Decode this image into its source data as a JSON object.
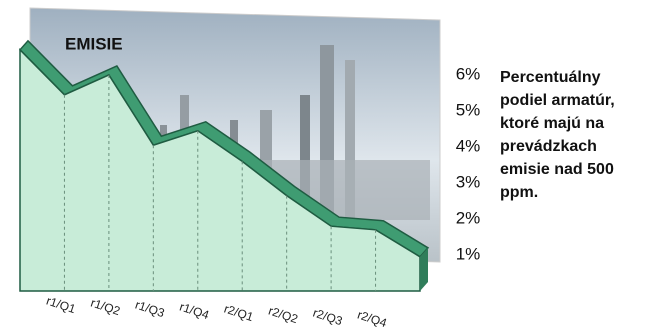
{
  "chart_data": {
    "type": "area",
    "title": "EMISIE",
    "annotation": "Percentuálny podiel armatúr, ktoré majú na prevádzkach emisie nad 500 ppm.",
    "categories": [
      null,
      "r1/Q1",
      "r1/Q2",
      "r1/Q3",
      "r1/Q4",
      "r2/Q1",
      "r2/Q2",
      "r2/Q3",
      "r2/Q4",
      null
    ],
    "values": [
      6.7,
      5.45,
      6.0,
      4.05,
      4.45,
      3.6,
      2.65,
      1.8,
      1.7,
      0.95
    ],
    "color": "#c8ecd8",
    "edge_color": "#3f9c72",
    "ylim": [
      0,
      7
    ],
    "yticks": [
      {
        "value": 1,
        "label": "1%"
      },
      {
        "value": 2,
        "label": "2%"
      },
      {
        "value": 3,
        "label": "3%"
      },
      {
        "value": 4,
        "label": "4%"
      },
      {
        "value": 5,
        "label": "5%"
      },
      {
        "value": 6,
        "label": "6%"
      }
    ]
  }
}
